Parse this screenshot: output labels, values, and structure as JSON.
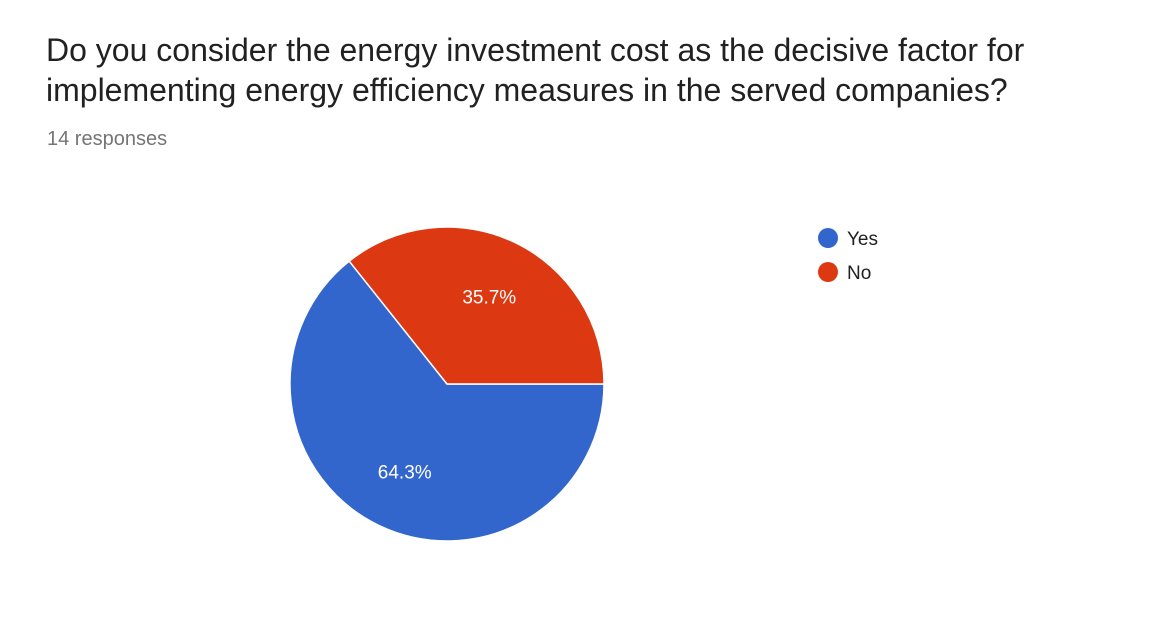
{
  "question": {
    "title": "Do you consider the energy investment cost as the decisive factor for implementing energy efficiency measures in the served companies?",
    "responses": "14 responses"
  },
  "chart_data": {
    "type": "pie",
    "categories": [
      "Yes",
      "No"
    ],
    "values": [
      64.3,
      35.7
    ],
    "value_labels": [
      "64.3%",
      "35.7%"
    ],
    "colors": [
      "#3366cc",
      "#dc3912"
    ],
    "legend_position": "right",
    "title": "",
    "xlabel": "",
    "ylabel": ""
  }
}
